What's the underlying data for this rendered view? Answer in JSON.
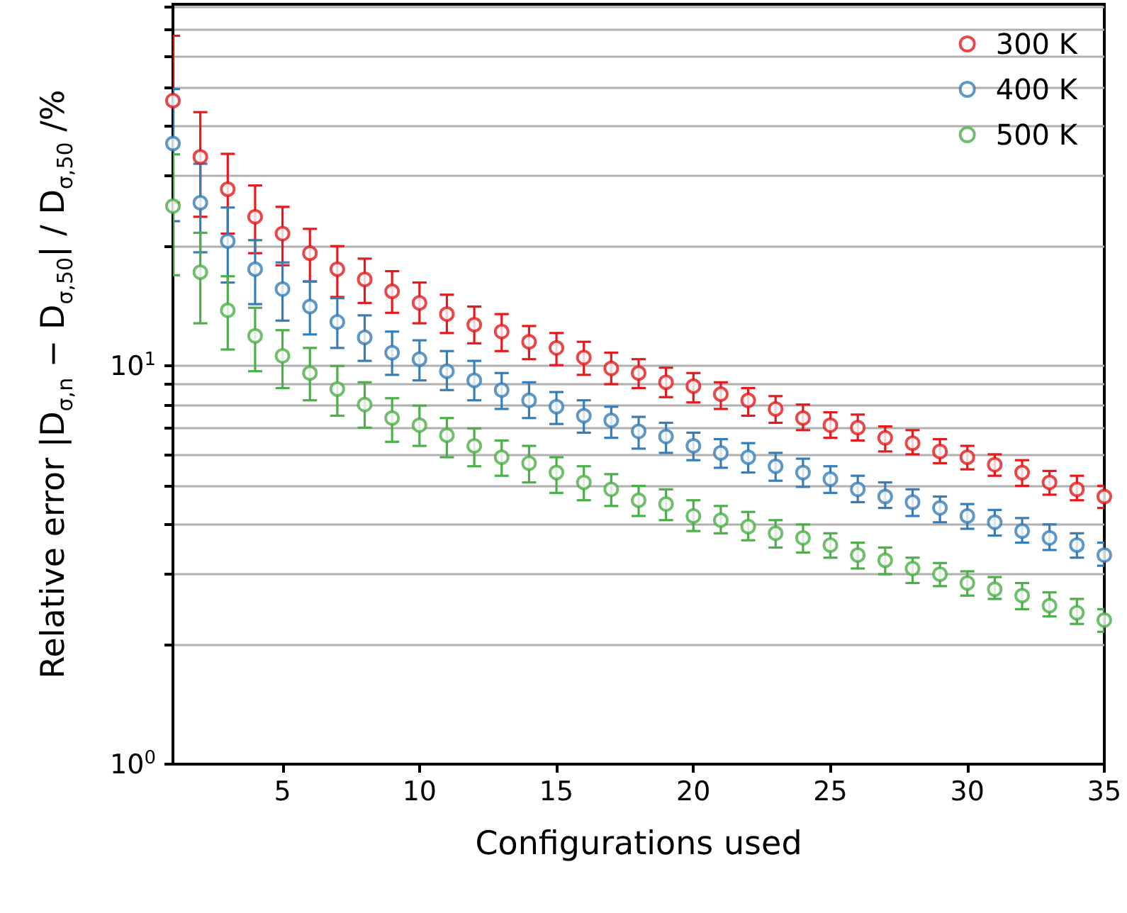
{
  "chart_data": {
    "type": "scatter",
    "xlabel": "Configurations used",
    "ylabel": "Relative error |D$_{σ,n}$ − D$_{σ,50}$| / D$_{σ,50}$ /%",
    "x": [
      1,
      2,
      3,
      4,
      5,
      6,
      7,
      8,
      9,
      10,
      11,
      12,
      13,
      14,
      15,
      16,
      17,
      18,
      19,
      20,
      21,
      22,
      23,
      24,
      25,
      26,
      27,
      28,
      29,
      30,
      31,
      32,
      33,
      34,
      35
    ],
    "xlim": [
      1,
      35
    ],
    "xticks": [
      5,
      10,
      15,
      20,
      25,
      30,
      35
    ],
    "ylim": [
      1,
      81
    ],
    "yticks": [
      {
        "value": 1,
        "label": "10$^{0}$"
      },
      {
        "value": 2,
        "label": null
      },
      {
        "value": 3,
        "label": null
      },
      {
        "value": 4,
        "label": null
      },
      {
        "value": 5,
        "label": null
      },
      {
        "value": 6,
        "label": null
      },
      {
        "value": 7,
        "label": null
      },
      {
        "value": 8,
        "label": null
      },
      {
        "value": 9,
        "label": null
      },
      {
        "value": 10,
        "label": "10$^{1}$"
      },
      {
        "value": 20,
        "label": null
      },
      {
        "value": 30,
        "label": null
      },
      {
        "value": 40,
        "label": null
      },
      {
        "value": 50,
        "label": null
      },
      {
        "value": 60,
        "label": null
      },
      {
        "value": 70,
        "label": null
      },
      {
        "value": 80,
        "label": null
      }
    ],
    "log": "y",
    "grid": "y",
    "legend": "top right",
    "marker": "circle",
    "series": [
      {
        "name": "300 K",
        "color": "#e41a1c",
        "values": [
          46.4,
          33.5,
          27.8,
          23.7,
          21.5,
          19.2,
          17.5,
          16.5,
          15.4,
          14.4,
          13.5,
          12.7,
          12.2,
          11.5,
          11.1,
          10.5,
          9.86,
          9.6,
          9.1,
          8.9,
          8.5,
          8.2,
          7.8,
          7.4,
          7.1,
          7.0,
          6.6,
          6.4,
          6.1,
          5.9,
          5.65,
          5.4,
          5.1,
          4.9,
          4.7
        ],
        "errors": [
          [
            25.7,
            67.5
          ],
          [
            23.7,
            43.4
          ],
          [
            21.5,
            34.1
          ],
          [
            19.2,
            28.4
          ],
          [
            17.9,
            25.1
          ],
          [
            16.3,
            22.1
          ],
          [
            14.9,
            20.0
          ],
          [
            14.4,
            18.6
          ],
          [
            13.6,
            17.3
          ],
          [
            12.8,
            16.2
          ],
          [
            12.1,
            15.1
          ],
          [
            11.4,
            14.1
          ],
          [
            10.9,
            13.5
          ],
          [
            10.4,
            12.6
          ],
          [
            10.05,
            12.1
          ],
          [
            9.5,
            11.5
          ],
          [
            9.0,
            10.8
          ],
          [
            8.8,
            10.4
          ],
          [
            8.35,
            9.9
          ],
          [
            8.1,
            9.6
          ],
          [
            7.8,
            9.1
          ],
          [
            7.5,
            8.8
          ],
          [
            7.2,
            8.4
          ],
          [
            6.9,
            8.0
          ],
          [
            6.6,
            7.65
          ],
          [
            6.5,
            7.55
          ],
          [
            6.1,
            7.05
          ],
          [
            6.0,
            6.9
          ],
          [
            5.7,
            6.55
          ],
          [
            5.5,
            6.3
          ],
          [
            5.3,
            6.0
          ],
          [
            5.0,
            5.8
          ],
          [
            4.75,
            5.45
          ],
          [
            4.6,
            5.3
          ],
          [
            4.4,
            5.0
          ]
        ]
      },
      {
        "name": "400 K",
        "color": "#377eb8",
        "values": [
          36.2,
          25.7,
          20.6,
          17.5,
          15.6,
          14.1,
          12.9,
          11.8,
          10.8,
          10.4,
          9.7,
          9.2,
          8.7,
          8.2,
          7.9,
          7.5,
          7.3,
          6.85,
          6.65,
          6.3,
          6.05,
          5.9,
          5.6,
          5.4,
          5.2,
          4.9,
          4.7,
          4.55,
          4.4,
          4.2,
          4.05,
          3.85,
          3.7,
          3.55,
          3.35
        ],
        "errors": [
          [
            23.1,
            49.6
          ],
          [
            19.3,
            32.2
          ],
          [
            16.2,
            25.0
          ],
          [
            14.3,
            20.7
          ],
          [
            13.0,
            18.2
          ],
          [
            12.0,
            16.3
          ],
          [
            11.1,
            14.8
          ],
          [
            10.3,
            13.4
          ],
          [
            9.5,
            12.2
          ],
          [
            9.2,
            11.6
          ],
          [
            8.7,
            10.9
          ],
          [
            8.2,
            10.3
          ],
          [
            7.8,
            9.6
          ],
          [
            7.4,
            9.1
          ],
          [
            7.15,
            8.6
          ],
          [
            6.8,
            8.2
          ],
          [
            6.6,
            7.9
          ],
          [
            6.2,
            7.45
          ],
          [
            6.05,
            7.2
          ],
          [
            5.8,
            6.8
          ],
          [
            5.55,
            6.55
          ],
          [
            5.4,
            6.4
          ],
          [
            5.15,
            6.05
          ],
          [
            4.97,
            5.85
          ],
          [
            4.8,
            5.6
          ],
          [
            4.55,
            5.3
          ],
          [
            4.4,
            5.1
          ],
          [
            4.2,
            4.9
          ],
          [
            4.05,
            4.7
          ],
          [
            3.9,
            4.5
          ],
          [
            3.75,
            4.35
          ],
          [
            3.6,
            4.15
          ],
          [
            3.45,
            4.0
          ],
          [
            3.3,
            3.8
          ],
          [
            3.15,
            3.6
          ]
        ]
      },
      {
        "name": "500 K",
        "color": "#4daf4a",
        "values": [
          25.2,
          17.2,
          13.8,
          11.9,
          10.6,
          9.6,
          8.75,
          8.0,
          7.4,
          7.1,
          6.7,
          6.3,
          5.9,
          5.7,
          5.4,
          5.1,
          4.9,
          4.6,
          4.5,
          4.2,
          4.1,
          3.95,
          3.8,
          3.7,
          3.55,
          3.35,
          3.25,
          3.1,
          3.0,
          2.85,
          2.75,
          2.65,
          2.5,
          2.4,
          2.3
        ],
        "errors": [
          [
            16.9,
            34.0
          ],
          [
            12.8,
            21.6
          ],
          [
            11.0,
            16.8
          ],
          [
            9.7,
            14.0
          ],
          [
            8.8,
            12.3
          ],
          [
            8.2,
            11.1
          ],
          [
            7.5,
            10.0
          ],
          [
            7.0,
            9.1
          ],
          [
            6.45,
            8.3
          ],
          [
            6.3,
            7.95
          ],
          [
            5.9,
            7.4
          ],
          [
            5.6,
            6.97
          ],
          [
            5.3,
            6.5
          ],
          [
            5.1,
            6.3
          ],
          [
            4.8,
            5.9
          ],
          [
            4.6,
            5.6
          ],
          [
            4.45,
            5.35
          ],
          [
            4.2,
            5.0
          ],
          [
            4.1,
            4.9
          ],
          [
            3.85,
            4.6
          ],
          [
            3.8,
            4.45
          ],
          [
            3.65,
            4.3
          ],
          [
            3.5,
            4.1
          ],
          [
            3.4,
            4.0
          ],
          [
            3.3,
            3.8
          ],
          [
            3.1,
            3.6
          ],
          [
            3.0,
            3.5
          ],
          [
            2.85,
            3.3
          ],
          [
            2.8,
            3.2
          ],
          [
            2.65,
            3.05
          ],
          [
            2.6,
            2.95
          ],
          [
            2.45,
            2.85
          ],
          [
            2.35,
            2.7
          ],
          [
            2.25,
            2.6
          ],
          [
            2.15,
            2.45
          ]
        ]
      }
    ]
  }
}
